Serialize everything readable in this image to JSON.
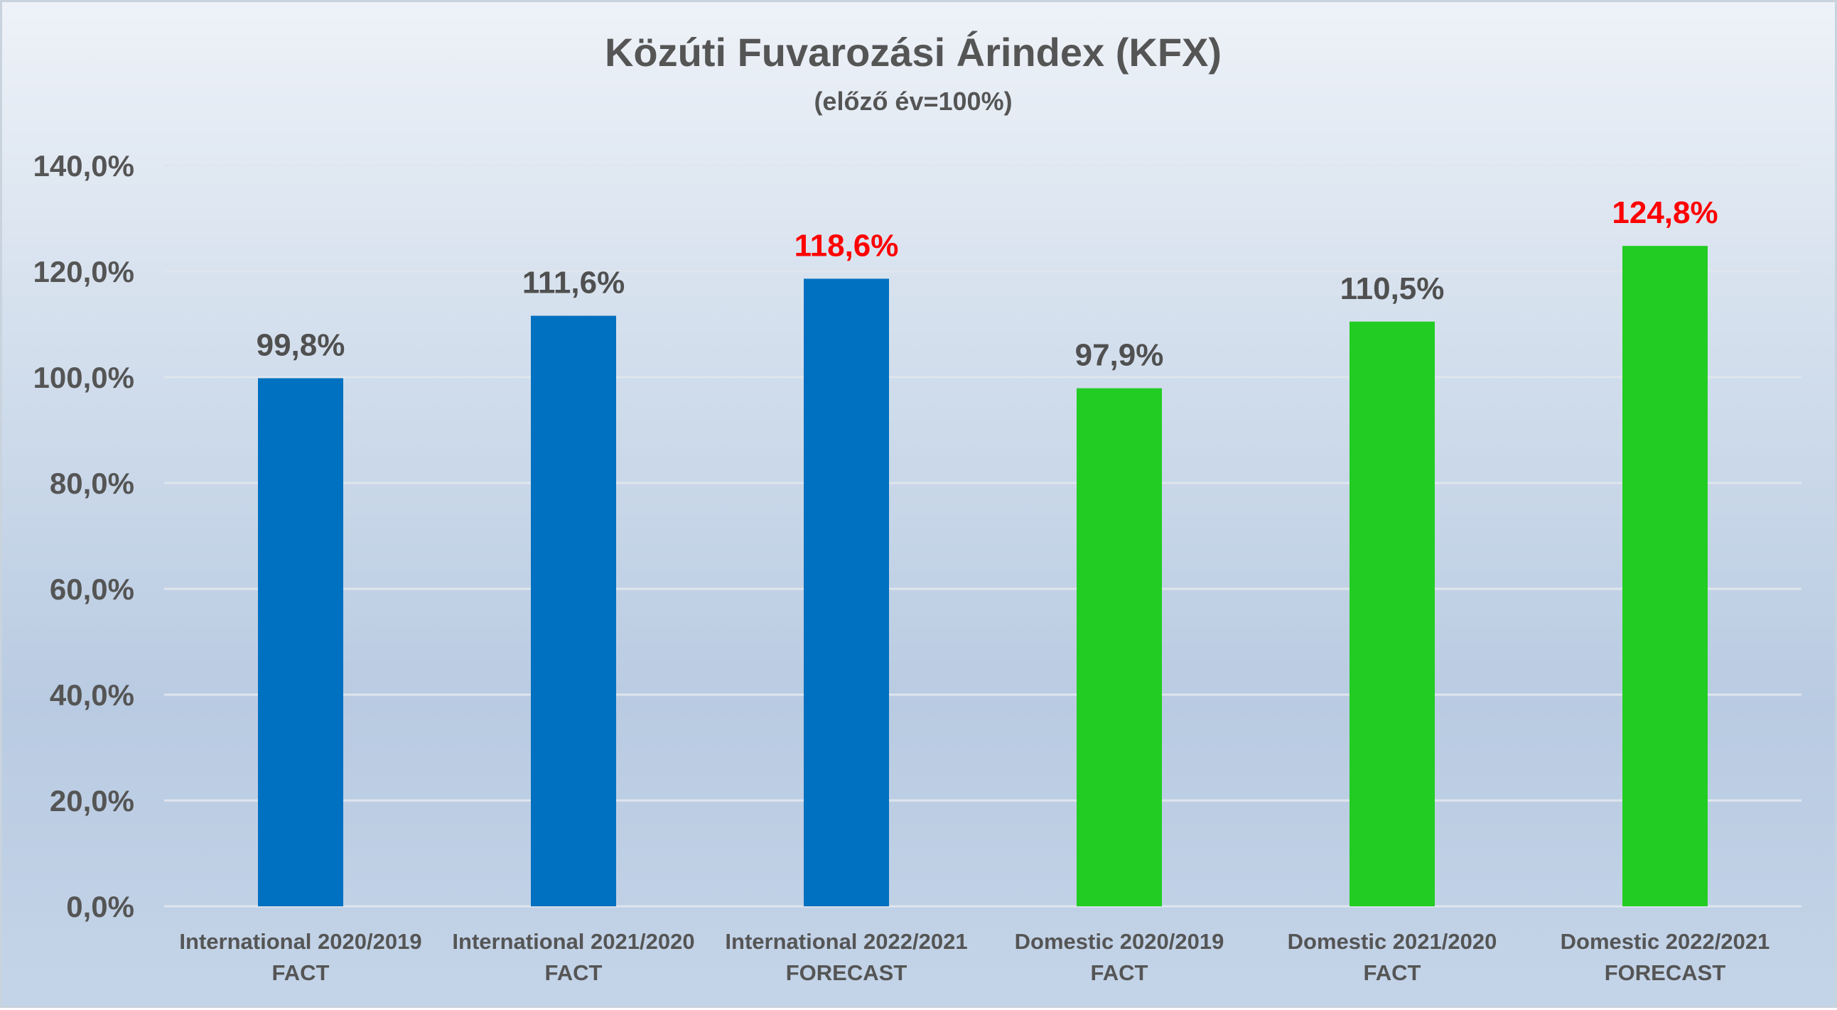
{
  "chart_data": {
    "type": "bar",
    "title": "Közúti Fuvarozási Árindex (KFX)",
    "subtitle": "(előző év=100%)",
    "xlabel": "",
    "ylabel": "",
    "ylim": [
      0,
      140
    ],
    "ytick_values": [
      0,
      20,
      40,
      60,
      80,
      100,
      120,
      140
    ],
    "ytick_labels": [
      "0,0%",
      "20,0%",
      "40,0%",
      "60,0%",
      "80,0%",
      "100,0%",
      "120,0%",
      "140,0%"
    ],
    "grid": true,
    "legend": "none",
    "categories": [
      [
        "International 2020/2019",
        "FACT"
      ],
      [
        "International 2021/2020",
        "FACT"
      ],
      [
        "International 2022/2021",
        "FORECAST"
      ],
      [
        "Domestic 2020/2019",
        "FACT"
      ],
      [
        "Domestic 2021/2020",
        "FACT"
      ],
      [
        "Domestic 2022/2021",
        "FORECAST"
      ]
    ],
    "values": [
      99.8,
      111.6,
      118.6,
      97.9,
      110.5,
      124.8
    ],
    "data_labels": [
      "99,8%",
      "111,6%",
      "118,6%",
      "97,9%",
      "110,5%",
      "124,8%"
    ],
    "bar_colors": [
      "#0070C0",
      "#0070C0",
      "#0070C0",
      "#22CC22",
      "#22CC22",
      "#22CC22"
    ],
    "label_colors": [
      "#505050",
      "#505050",
      "#FF0000",
      "#505050",
      "#505050",
      "#FF0000"
    ]
  }
}
